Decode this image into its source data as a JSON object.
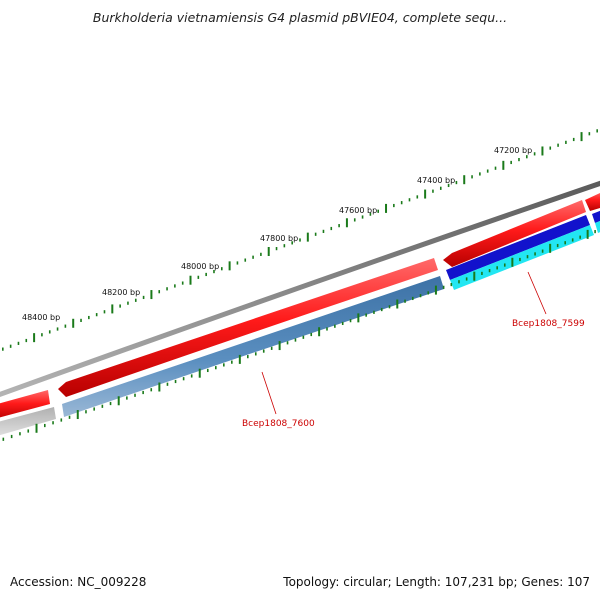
{
  "title": "Burkholderia vietnamiensis G4 plasmid pBVIE04, complete sequ...",
  "footer": {
    "accession": "Accession: NC_009228",
    "summary": "Topology: circular; Length: 107,231 bp; Genes: 107"
  },
  "scale_labels": [
    "47200 bp",
    "47400 bp",
    "47600 bp",
    "47800 bp",
    "48000 bp",
    "48200 bp",
    "48400 bp"
  ],
  "gene_labels": [
    "Bcep1808_7599",
    "Bcep1808_7600"
  ],
  "colors": {
    "tick": "#1a7a1a",
    "backbone": "#7f7f7f",
    "cds_red": "#ee1111",
    "gene_blue": "#4a7fb0",
    "gene_darkblue": "#1010cc",
    "gene_cyan": "#20e8f0",
    "gene_gray": "#c4c4c4",
    "label_red": "#cc0000"
  }
}
